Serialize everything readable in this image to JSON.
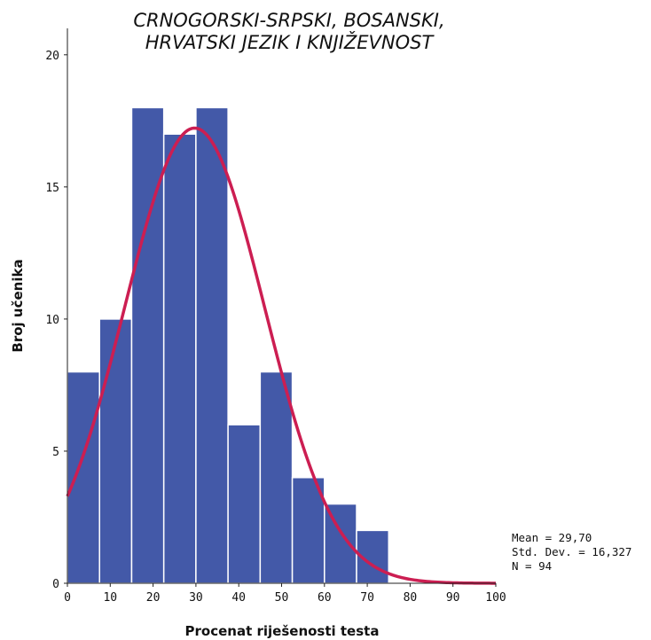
{
  "chart_data": {
    "type": "bar",
    "title_lines": [
      "CRNOGORSKI-SRPSKI, BOSANSKI,",
      "HRVATSKI JEZIK I KNJIŽEVNOST"
    ],
    "xlabel": "Procenat riješenosti testa",
    "ylabel": "Broj učenika",
    "xlim": [
      0,
      100
    ],
    "ylim": [
      0,
      21
    ],
    "x_ticks": [
      0,
      10,
      20,
      30,
      40,
      50,
      60,
      70,
      80,
      90,
      100
    ],
    "y_ticks": [
      0,
      5,
      10,
      15,
      20
    ],
    "bin_width": 7.5,
    "bin_starts": [
      0,
      7.5,
      15,
      22.5,
      30,
      37.5,
      45,
      52.5,
      60,
      67.5
    ],
    "values": [
      8,
      10,
      18,
      17,
      18,
      6,
      8,
      4,
      3,
      2
    ],
    "bar_color": "#4359a8",
    "curve_color": "#cc1e52",
    "normal_curve": {
      "mean": 29.7,
      "std_dev": 16.327,
      "n": 94
    },
    "stats_lines": [
      "Mean = 29,70",
      "Std. Dev. = 16,327",
      "N = 94"
    ]
  }
}
